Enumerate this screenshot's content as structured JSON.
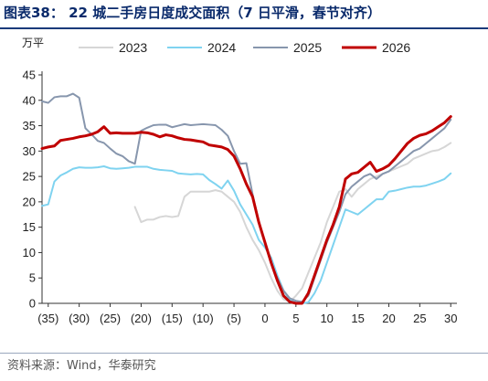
{
  "header": {
    "title": "图表38：  22 城二手房日度成交面积（7 日平滑，春节对齐）"
  },
  "footer": {
    "source": "资料来源：Wind，华泰研究"
  },
  "colors": {
    "title": "#0a2a6b",
    "s2023": "#d6d6d6",
    "s2024": "#7fd3f0",
    "s2025": "#8796ad",
    "s2026": "#c00000"
  },
  "chart_data": {
    "type": "line",
    "ylabel": "万平",
    "ylim": [
      0,
      45
    ],
    "yticks": [
      0,
      5,
      10,
      15,
      20,
      25,
      30,
      35,
      40,
      45
    ],
    "xlim": [
      -36,
      31
    ],
    "xticks": [
      {
        "v": -35,
        "label": "(35)"
      },
      {
        "v": -30,
        "label": "(30)"
      },
      {
        "v": -25,
        "label": "(25)"
      },
      {
        "v": -20,
        "label": "(20)"
      },
      {
        "v": -15,
        "label": "(15)"
      },
      {
        "v": -10,
        "label": "(10)"
      },
      {
        "v": -5,
        "label": "(5)"
      },
      {
        "v": 0,
        "label": "0"
      },
      {
        "v": 5,
        "label": "5"
      },
      {
        "v": 10,
        "label": "10"
      },
      {
        "v": 15,
        "label": "15"
      },
      {
        "v": 20,
        "label": "20"
      },
      {
        "v": 25,
        "label": "25"
      },
      {
        "v": 30,
        "label": "30"
      }
    ],
    "legend_position": "top",
    "series": [
      {
        "name": "2023",
        "color": "#d6d6d6",
        "width": 2,
        "points": [
          [
            -21,
            19
          ],
          [
            -20,
            16
          ],
          [
            -19,
            16.5
          ],
          [
            -18,
            16.5
          ],
          [
            -17,
            17
          ],
          [
            -16,
            17.2
          ],
          [
            -15,
            17
          ],
          [
            -14,
            17.2
          ],
          [
            -13,
            21
          ],
          [
            -12,
            22
          ],
          [
            -11,
            22
          ],
          [
            -10,
            22
          ],
          [
            -9,
            22
          ],
          [
            -8,
            22.3
          ],
          [
            -7,
            22
          ],
          [
            -6,
            21
          ],
          [
            -5,
            20
          ],
          [
            -4,
            18
          ],
          [
            -3,
            15
          ],
          [
            -2,
            12.5
          ],
          [
            -1,
            10.5
          ],
          [
            0,
            8
          ],
          [
            1,
            5
          ],
          [
            2,
            2.5
          ],
          [
            3,
            0.8
          ],
          [
            4,
            0.3
          ],
          [
            5,
            1.5
          ],
          [
            6,
            3
          ],
          [
            7,
            6
          ],
          [
            8,
            9
          ],
          [
            9,
            12
          ],
          [
            10,
            16
          ],
          [
            11,
            19
          ],
          [
            12,
            22
          ],
          [
            13,
            22.5
          ],
          [
            14,
            21
          ],
          [
            15,
            22.5
          ],
          [
            16,
            23.5
          ],
          [
            17,
            24.5
          ],
          [
            18,
            25
          ],
          [
            19,
            25.5
          ],
          [
            20,
            26
          ],
          [
            21,
            26.5
          ],
          [
            22,
            27
          ],
          [
            23,
            27.5
          ],
          [
            24,
            28.5
          ],
          [
            25,
            29
          ],
          [
            26,
            29.5
          ],
          [
            27,
            30
          ],
          [
            28,
            30.2
          ],
          [
            29,
            30.8
          ],
          [
            30,
            31.6
          ]
        ]
      },
      {
        "name": "2024",
        "color": "#7fd3f0",
        "width": 2,
        "points": [
          [
            -36,
            19.2
          ],
          [
            -35,
            19.5
          ],
          [
            -34,
            24
          ],
          [
            -33,
            25.2
          ],
          [
            -32,
            25.8
          ],
          [
            -31,
            26.5
          ],
          [
            -30,
            26.8
          ],
          [
            -29,
            26.7
          ],
          [
            -28,
            26.7
          ],
          [
            -27,
            26.8
          ],
          [
            -26,
            27
          ],
          [
            -25,
            26.6
          ],
          [
            -24,
            26.5
          ],
          [
            -23,
            26.6
          ],
          [
            -22,
            26.7
          ],
          [
            -21,
            26.9
          ],
          [
            -20,
            26.9
          ],
          [
            -19,
            26.9
          ],
          [
            -18,
            26.5
          ],
          [
            -17,
            26.3
          ],
          [
            -16,
            26.2
          ],
          [
            -15,
            26.1
          ],
          [
            -14,
            25.6
          ],
          [
            -13,
            25.5
          ],
          [
            -12,
            25.4
          ],
          [
            -11,
            25.5
          ],
          [
            -10,
            25.4
          ],
          [
            -9,
            24.3
          ],
          [
            -8,
            23.5
          ],
          [
            -7,
            22.6
          ],
          [
            -6,
            24.2
          ],
          [
            -5,
            22.2
          ],
          [
            -4,
            19.5
          ],
          [
            -3,
            17.5
          ],
          [
            -2,
            15.5
          ],
          [
            -1,
            12.5
          ],
          [
            0,
            11
          ],
          [
            1,
            9
          ],
          [
            2,
            5.5
          ],
          [
            3,
            2.5
          ],
          [
            4,
            0.7
          ],
          [
            5,
            0.1
          ],
          [
            6,
            0
          ],
          [
            7,
            0.2
          ],
          [
            8,
            2
          ],
          [
            9,
            4.5
          ],
          [
            10,
            8
          ],
          [
            11,
            11.5
          ],
          [
            12,
            15
          ],
          [
            13,
            18.5
          ],
          [
            14,
            18
          ],
          [
            15,
            17.5
          ],
          [
            16,
            18.5
          ],
          [
            17,
            19.5
          ],
          [
            18,
            20.5
          ],
          [
            19,
            20.5
          ],
          [
            20,
            22
          ],
          [
            21,
            22.2
          ],
          [
            22,
            22.5
          ],
          [
            23,
            22.8
          ],
          [
            24,
            23
          ],
          [
            25,
            23
          ],
          [
            26,
            23.2
          ],
          [
            27,
            23.6
          ],
          [
            28,
            24
          ],
          [
            29,
            24.5
          ],
          [
            30,
            25.6
          ]
        ]
      },
      {
        "name": "2025",
        "color": "#8796ad",
        "width": 2,
        "points": [
          [
            -36,
            39.8
          ],
          [
            -35,
            39.5
          ],
          [
            -34,
            40.6
          ],
          [
            -33,
            40.8
          ],
          [
            -32,
            40.8
          ],
          [
            -31,
            41.3
          ],
          [
            -30,
            40.5
          ],
          [
            -29,
            34.5
          ],
          [
            -28,
            33.3
          ],
          [
            -27,
            32
          ],
          [
            -26,
            31.6
          ],
          [
            -25,
            30.5
          ],
          [
            -24,
            29.5
          ],
          [
            -23,
            29
          ],
          [
            -22,
            28
          ],
          [
            -21,
            27.5
          ],
          [
            -20,
            34
          ],
          [
            -19,
            34.6
          ],
          [
            -18,
            35.1
          ],
          [
            -17,
            35.2
          ],
          [
            -16,
            35.2
          ],
          [
            -15,
            34.7
          ],
          [
            -14,
            35
          ],
          [
            -13,
            35.3
          ],
          [
            -12,
            35.1
          ],
          [
            -11,
            35.2
          ],
          [
            -10,
            35.3
          ],
          [
            -9,
            35.2
          ],
          [
            -8,
            35.1
          ],
          [
            -7,
            34.2
          ],
          [
            -6,
            33
          ],
          [
            -5,
            30
          ],
          [
            -4,
            27.5
          ],
          [
            -3,
            27.6
          ],
          [
            -2,
            21.5
          ],
          [
            -1,
            16
          ],
          [
            0,
            12
          ],
          [
            1,
            8
          ],
          [
            2,
            5
          ],
          [
            3,
            2.5
          ],
          [
            4,
            1
          ],
          [
            5,
            0.5
          ],
          [
            6,
            0.3
          ],
          [
            7,
            1.5
          ],
          [
            8,
            5
          ],
          [
            9,
            8.5
          ],
          [
            10,
            12
          ],
          [
            11,
            15
          ],
          [
            12,
            18
          ],
          [
            13,
            21.5
          ],
          [
            14,
            23
          ],
          [
            15,
            24
          ],
          [
            16,
            25
          ],
          [
            17,
            25.5
          ],
          [
            18,
            24.5
          ],
          [
            19,
            25.5
          ],
          [
            20,
            26
          ],
          [
            21,
            27
          ],
          [
            22,
            28
          ],
          [
            23,
            29
          ],
          [
            24,
            30
          ],
          [
            25,
            30.5
          ],
          [
            26,
            31.5
          ],
          [
            27,
            32.5
          ],
          [
            28,
            33.5
          ],
          [
            29,
            34.5
          ],
          [
            30,
            36.2
          ]
        ]
      },
      {
        "name": "2026",
        "color": "#c00000",
        "width": 3,
        "points": [
          [
            -36,
            30.5
          ],
          [
            -35,
            30.8
          ],
          [
            -34,
            31
          ],
          [
            -33,
            32.1
          ],
          [
            -32,
            32.3
          ],
          [
            -31,
            32.5
          ],
          [
            -30,
            32.8
          ],
          [
            -29,
            33
          ],
          [
            -28,
            33.3
          ],
          [
            -27,
            33.8
          ],
          [
            -26,
            34.8
          ],
          [
            -25,
            33.5
          ],
          [
            -24,
            33.6
          ],
          [
            -23,
            33.5
          ],
          [
            -22,
            33.5
          ],
          [
            -21,
            33.5
          ],
          [
            -20,
            33.7
          ],
          [
            -19,
            33.6
          ],
          [
            -18,
            33.3
          ],
          [
            -17,
            32.8
          ],
          [
            -16,
            33.2
          ],
          [
            -15,
            33
          ],
          [
            -14,
            32.6
          ],
          [
            -13,
            32.3
          ],
          [
            -12,
            32.2
          ],
          [
            -11,
            32
          ],
          [
            -10,
            31.8
          ],
          [
            -9,
            31.2
          ],
          [
            -8,
            31
          ],
          [
            -7,
            30.8
          ],
          [
            -6,
            30.3
          ],
          [
            -5,
            29
          ],
          [
            -4,
            26.5
          ],
          [
            -3,
            23.5
          ],
          [
            -2,
            21
          ],
          [
            -1,
            16
          ],
          [
            0,
            12
          ],
          [
            1,
            8
          ],
          [
            2,
            4.5
          ],
          [
            3,
            1.5
          ],
          [
            4,
            0.3
          ],
          [
            5,
            0
          ],
          [
            6,
            0
          ],
          [
            7,
            2
          ],
          [
            8,
            5.5
          ],
          [
            9,
            9
          ],
          [
            10,
            12.5
          ],
          [
            11,
            15.5
          ],
          [
            12,
            19
          ],
          [
            13,
            24.5
          ],
          [
            14,
            25.5
          ],
          [
            15,
            25.8
          ],
          [
            16,
            26.8
          ],
          [
            17,
            27.8
          ],
          [
            18,
            26
          ],
          [
            19,
            26.5
          ],
          [
            20,
            27.2
          ],
          [
            21,
            28.5
          ],
          [
            22,
            30
          ],
          [
            23,
            31.5
          ],
          [
            24,
            32.5
          ],
          [
            25,
            33.1
          ],
          [
            26,
            33.4
          ],
          [
            27,
            34
          ],
          [
            28,
            34.8
          ],
          [
            29,
            35.6
          ],
          [
            30,
            36.8
          ]
        ]
      }
    ]
  }
}
